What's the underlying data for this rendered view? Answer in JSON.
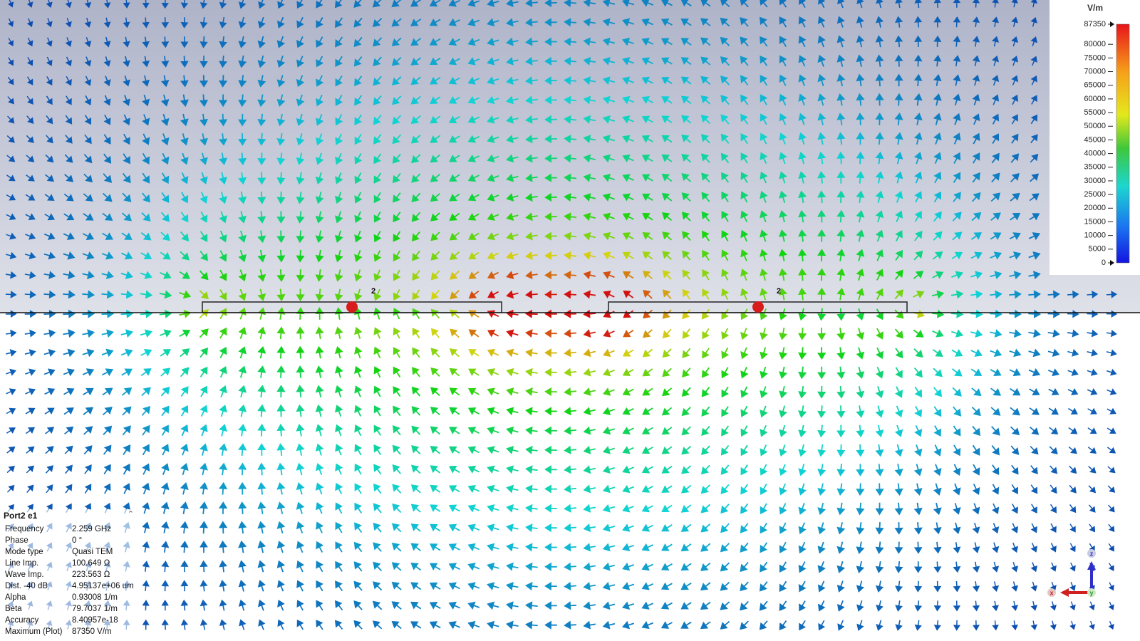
{
  "colorbar": {
    "unit": "V/m",
    "ticks": [
      87350,
      80000,
      75000,
      70000,
      65000,
      60000,
      55000,
      50000,
      45000,
      40000,
      35000,
      30000,
      25000,
      20000,
      15000,
      10000,
      5000,
      0
    ]
  },
  "port_labels": [
    "2",
    "2"
  ],
  "info_panel": {
    "title": "Port2 e1",
    "rows": [
      [
        "Frequency",
        "2.259 GHz"
      ],
      [
        "Phase",
        "0 °"
      ],
      [
        "Mode type",
        "Quasi TEM"
      ],
      [
        "Line Imp.",
        "100.649 Ω"
      ],
      [
        "Wave Imp.",
        "223.563 Ω"
      ],
      [
        "Dist. -40 dB",
        "4.95137e+06 um"
      ],
      [
        "Alpha",
        "0.93008 1/m"
      ],
      [
        "Beta",
        "79.7037 1/m"
      ],
      [
        "Accuracy",
        "8.40957e-18"
      ],
      [
        "Maximum (Plot)",
        "87350 V/m"
      ]
    ]
  },
  "axes": {
    "z": "z",
    "x": "x",
    "y": "y"
  }
}
